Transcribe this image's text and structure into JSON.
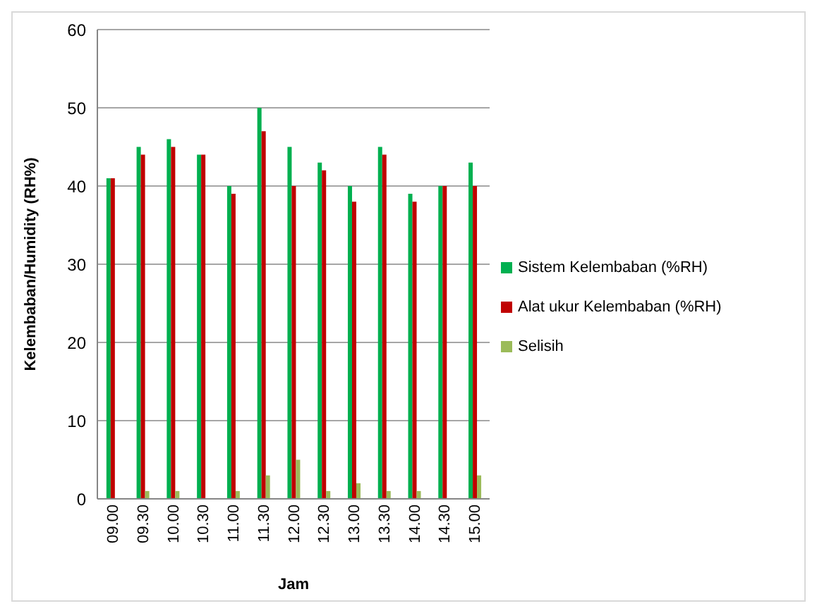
{
  "chart_data": {
    "type": "bar",
    "xlabel": "Jam",
    "ylabel": "Kelembaban/Humidity (RH%)",
    "categories": [
      "09.00",
      "09.30",
      "10.00",
      "10.30",
      "11.00",
      "11.30",
      "12.00",
      "12.30",
      "13.00",
      "13.30",
      "14.00",
      "14.30",
      "15.00"
    ],
    "series": [
      {
        "name": "Sistem Kelembaban (%RH)",
        "color": "#00b050",
        "values": [
          41,
          45,
          46,
          44,
          40,
          50,
          45,
          43,
          40,
          45,
          39,
          40,
          43
        ]
      },
      {
        "name": "Alat ukur Kelembaban (%RH)",
        "color": "#c00000",
        "values": [
          41,
          44,
          45,
          44,
          39,
          47,
          40,
          42,
          38,
          44,
          38,
          40,
          40
        ]
      },
      {
        "name": "Selisih",
        "color": "#9bbb59",
        "values": [
          0,
          1,
          1,
          0,
          1,
          3,
          5,
          1,
          2,
          1,
          1,
          0,
          3
        ]
      }
    ],
    "ylim": [
      0,
      60
    ],
    "yticks": [
      0,
      10,
      20,
      30,
      40,
      50,
      60
    ],
    "grid": "y",
    "legend": "right"
  }
}
